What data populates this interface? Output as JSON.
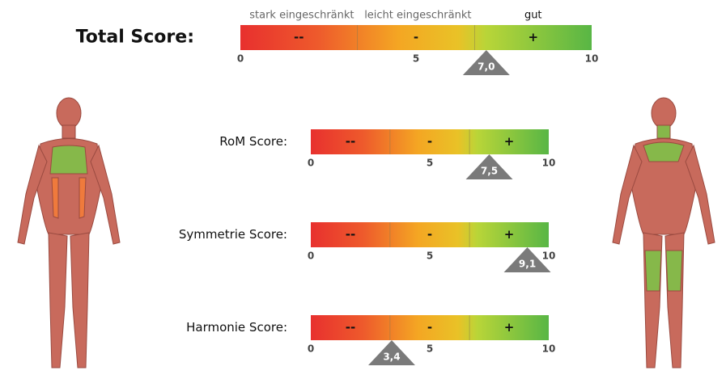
{
  "zone_headers": [
    "stark eingeschränkt",
    "leicht eingeschränkt",
    "gut"
  ],
  "zones": [
    "--",
    "-",
    "+"
  ],
  "scale": {
    "lim": [
      0,
      10
    ],
    "ticks": [
      0,
      5,
      10
    ],
    "zone_edges": [
      3.33,
      6.67
    ]
  },
  "scores": [
    {
      "label": "Total Score:",
      "value": 7.0,
      "value_label": "7,0"
    },
    {
      "label": "RoM Score:",
      "value": 7.5,
      "value_label": "7,5"
    },
    {
      "label": "Symmetrie Score:",
      "value": 9.1,
      "value_label": "9,1"
    },
    {
      "label": "Harmonie Score:",
      "value": 3.4,
      "value_label": "3,4"
    }
  ]
}
